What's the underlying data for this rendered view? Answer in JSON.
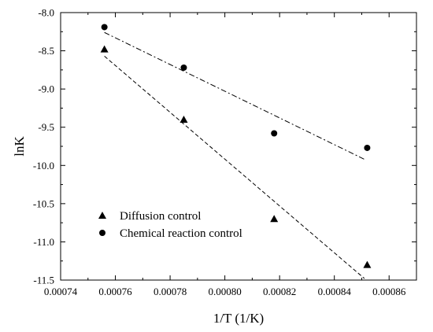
{
  "chart_data": {
    "type": "scatter",
    "title": "",
    "xlabel": "1/T (1/K)",
    "ylabel": "lnK",
    "xlim": [
      0.00074,
      0.00087
    ],
    "ylim": [
      -11.5,
      -8.0
    ],
    "xticks": [
      "0.00074",
      "0.00076",
      "0.00078",
      "0.00080",
      "0.00082",
      "0.00084",
      "0.00086"
    ],
    "xtick_values": [
      0.00074,
      0.00076,
      0.00078,
      0.0008,
      0.00082,
      0.00084,
      0.00086
    ],
    "yticks": [
      "-8.0",
      "-8.5",
      "-9.0",
      "-9.5",
      "-10.0",
      "-10.5",
      "-11.0",
      "-11.5"
    ],
    "ytick_values": [
      -8.0,
      -8.5,
      -9.0,
      -9.5,
      -10.0,
      -10.5,
      -11.0,
      -11.5
    ],
    "grid": false,
    "legend_position": "bottom-left",
    "series": [
      {
        "name": "Diffusion control",
        "marker": "triangle",
        "color": "#000000",
        "x": [
          0.000756,
          0.000785,
          0.000818,
          0.000852
        ],
        "y": [
          -8.48,
          -9.4,
          -10.7,
          -11.3
        ],
        "fit": {
          "line_style": "dashed",
          "x": [
            0.000756,
            0.000851
          ],
          "y": [
            -8.57,
            -11.48
          ]
        }
      },
      {
        "name": "Chemical reaction control",
        "marker": "circle",
        "color": "#000000",
        "x": [
          0.000756,
          0.000785,
          0.000818,
          0.000852
        ],
        "y": [
          -8.19,
          -8.72,
          -9.58,
          -9.77
        ],
        "fit": {
          "line_style": "dash-dot",
          "x": [
            0.000756,
            0.000851
          ],
          "y": [
            -8.26,
            -9.92
          ]
        }
      }
    ]
  }
}
